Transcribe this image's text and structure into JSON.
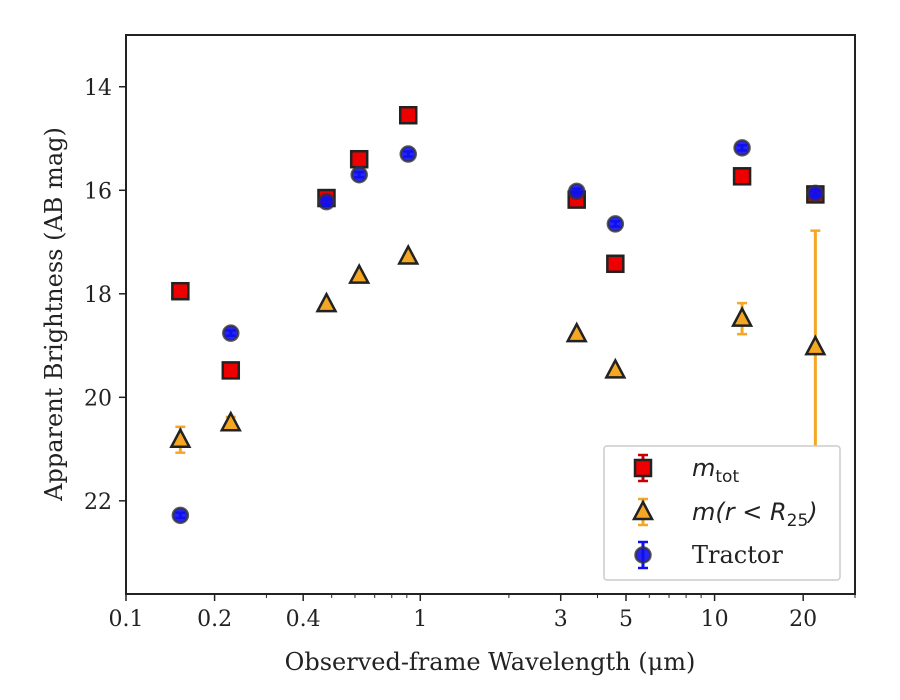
{
  "chart_data": {
    "type": "scatter",
    "xlabel": "Observed-frame Wavelength (μm)",
    "ylabel": "Apparent Brightness (AB mag)",
    "x_scale": "log",
    "xlim": [
      0.1,
      30
    ],
    "ylim": [
      23.8,
      13.0
    ],
    "y_inverted": true,
    "x_ticks": [
      {
        "value": 0.1,
        "label": "0.1"
      },
      {
        "value": 0.2,
        "label": "0.2"
      },
      {
        "value": 0.4,
        "label": "0.4"
      },
      {
        "value": 1,
        "label": "1"
      },
      {
        "value": 3,
        "label": "3"
      },
      {
        "value": 5,
        "label": "5"
      },
      {
        "value": 10,
        "label": "10"
      },
      {
        "value": 20,
        "label": "20"
      }
    ],
    "y_ticks": [
      {
        "value": 14,
        "label": "14"
      },
      {
        "value": 16,
        "label": "16"
      },
      {
        "value": 18,
        "label": "18"
      },
      {
        "value": 20,
        "label": "20"
      },
      {
        "value": 22,
        "label": "22"
      }
    ],
    "grid": false,
    "legend_position": "lower-right",
    "series": [
      {
        "name": "m_tot",
        "marker": "square",
        "color": "#ee0000",
        "error_color": "#cc0000",
        "points": [
          {
            "x": 0.153,
            "y": 17.95,
            "err": 0.1
          },
          {
            "x": 0.227,
            "y": 19.48,
            "err": 0.1
          },
          {
            "x": 0.48,
            "y": 16.15,
            "err": 0.1
          },
          {
            "x": 0.62,
            "y": 15.4,
            "err": 0.1
          },
          {
            "x": 0.91,
            "y": 14.55,
            "err": 0.1
          },
          {
            "x": 3.4,
            "y": 16.18,
            "err": 0.1
          },
          {
            "x": 4.6,
            "y": 17.42,
            "err": 0.1
          },
          {
            "x": 12.4,
            "y": 15.73,
            "err": 0.1
          },
          {
            "x": 22.0,
            "y": 16.08,
            "err": 0.1
          }
        ]
      },
      {
        "name": "m(r < R25)",
        "marker": "triangle",
        "color": "#f5a623",
        "error_color": "#f5a623",
        "points": [
          {
            "x": 0.153,
            "y": 20.82,
            "err": 0.25
          },
          {
            "x": 0.227,
            "y": 20.5,
            "err": 0.12
          },
          {
            "x": 0.48,
            "y": 18.2,
            "err": 0.05
          },
          {
            "x": 0.62,
            "y": 17.65,
            "err": 0.05
          },
          {
            "x": 0.91,
            "y": 17.28,
            "err": 0.05
          },
          {
            "x": 3.4,
            "y": 18.78,
            "err": 0.05
          },
          {
            "x": 4.6,
            "y": 19.48,
            "err": 0.05
          },
          {
            "x": 12.4,
            "y": 18.48,
            "err": 0.3
          },
          {
            "x": 22.0,
            "y": 19.03,
            "err": 2.25
          }
        ]
      },
      {
        "name": "Tractor",
        "marker": "circle",
        "color": "#1010ee",
        "error_color": "#1010ee",
        "points": [
          {
            "x": 0.153,
            "y": 22.28,
            "err": 0.05
          },
          {
            "x": 0.227,
            "y": 18.76,
            "err": 0.05
          },
          {
            "x": 0.48,
            "y": 16.22,
            "err": 0.05
          },
          {
            "x": 0.62,
            "y": 15.7,
            "err": 0.05
          },
          {
            "x": 0.91,
            "y": 15.3,
            "err": 0.05
          },
          {
            "x": 3.4,
            "y": 16.02,
            "err": 0.05
          },
          {
            "x": 4.6,
            "y": 16.65,
            "err": 0.05
          },
          {
            "x": 12.4,
            "y": 15.18,
            "err": 0.05
          },
          {
            "x": 22.0,
            "y": 16.06,
            "err": 0.05
          }
        ]
      }
    ],
    "legend": [
      {
        "label_main": "m",
        "label_sub": "tot",
        "label_extra": ""
      },
      {
        "label_main": "m(r < R",
        "label_sub": "25",
        "label_extra": ")"
      },
      {
        "label_main": "Tractor",
        "label_sub": "",
        "label_extra": ""
      }
    ]
  }
}
